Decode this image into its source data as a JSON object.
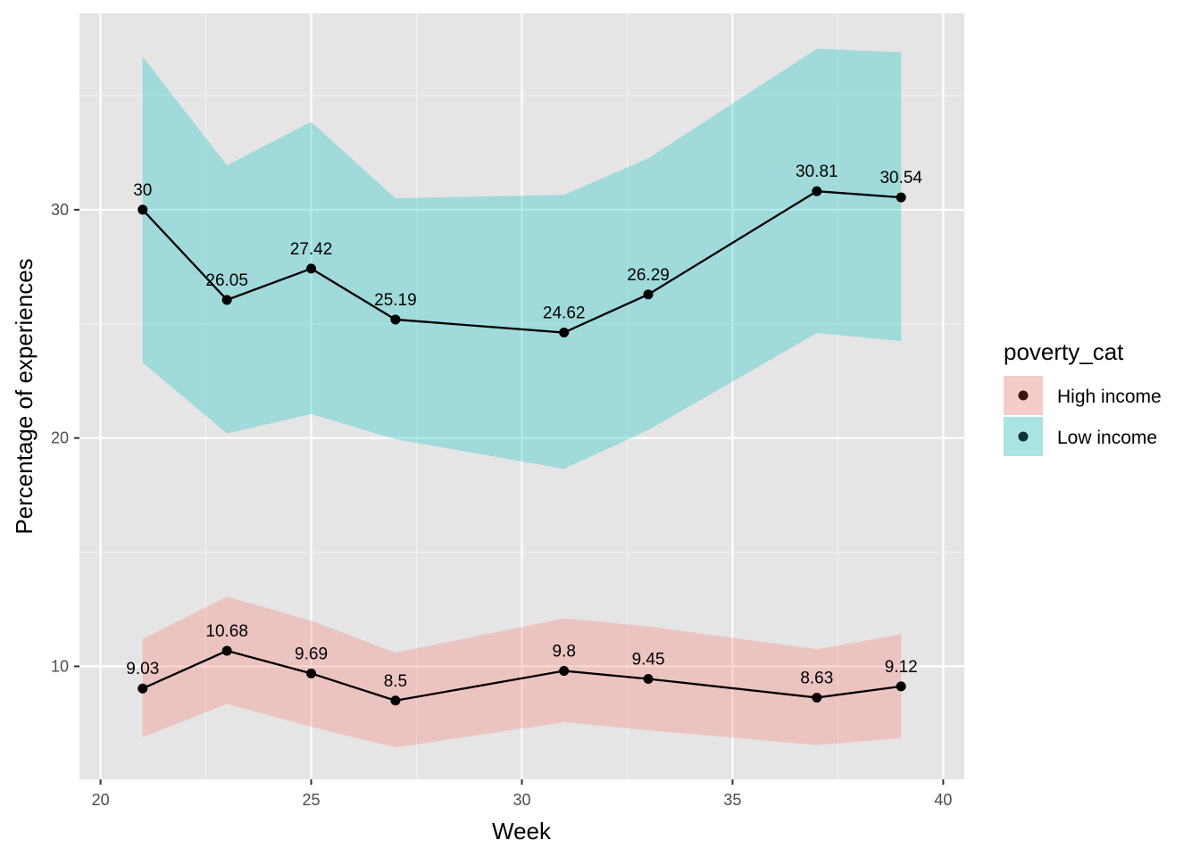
{
  "chart_data": {
    "type": "line",
    "title": "",
    "xlabel": "Week",
    "ylabel": "Percentage of experiences",
    "xlim": [
      19.5,
      40.5
    ],
    "ylim": [
      5.05,
      38.6
    ],
    "x_ticks": [
      20,
      25,
      30,
      35,
      40
    ],
    "y_ticks": [
      10,
      20,
      30
    ],
    "grid": true,
    "legend": {
      "title": "poverty_cat",
      "position": "right"
    },
    "x": [
      21,
      23,
      25,
      27,
      31,
      33,
      37,
      39
    ],
    "series": [
      {
        "name": "High income",
        "fill_color": "#f8766d",
        "point_color": "#3a1513",
        "values": [
          9.03,
          10.68,
          9.69,
          8.5,
          9.8,
          9.45,
          8.63,
          9.12
        ],
        "labels": [
          "9.03",
          "10.68",
          "9.69",
          "8.5",
          "9.8",
          "9.45",
          "8.63",
          "9.12"
        ],
        "lower": [
          6.9,
          8.35,
          7.35,
          6.45,
          7.55,
          7.2,
          6.55,
          6.85
        ],
        "upper": [
          11.2,
          13.05,
          12.0,
          10.6,
          12.1,
          11.75,
          10.75,
          11.4
        ]
      },
      {
        "name": "Low income",
        "fill_color": "#00bfc4",
        "point_color": "#0b3436",
        "values": [
          30,
          26.05,
          27.42,
          25.19,
          24.62,
          26.29,
          30.81,
          30.54
        ],
        "labels": [
          "30",
          "26.05",
          "27.42",
          "25.19",
          "24.62",
          "26.29",
          "30.81",
          "30.54"
        ],
        "lower": [
          23.3,
          20.2,
          21.05,
          19.95,
          18.65,
          20.35,
          24.6,
          24.25
        ],
        "upper": [
          36.7,
          31.95,
          33.85,
          30.5,
          30.65,
          32.25,
          37.05,
          36.9
        ]
      }
    ]
  }
}
